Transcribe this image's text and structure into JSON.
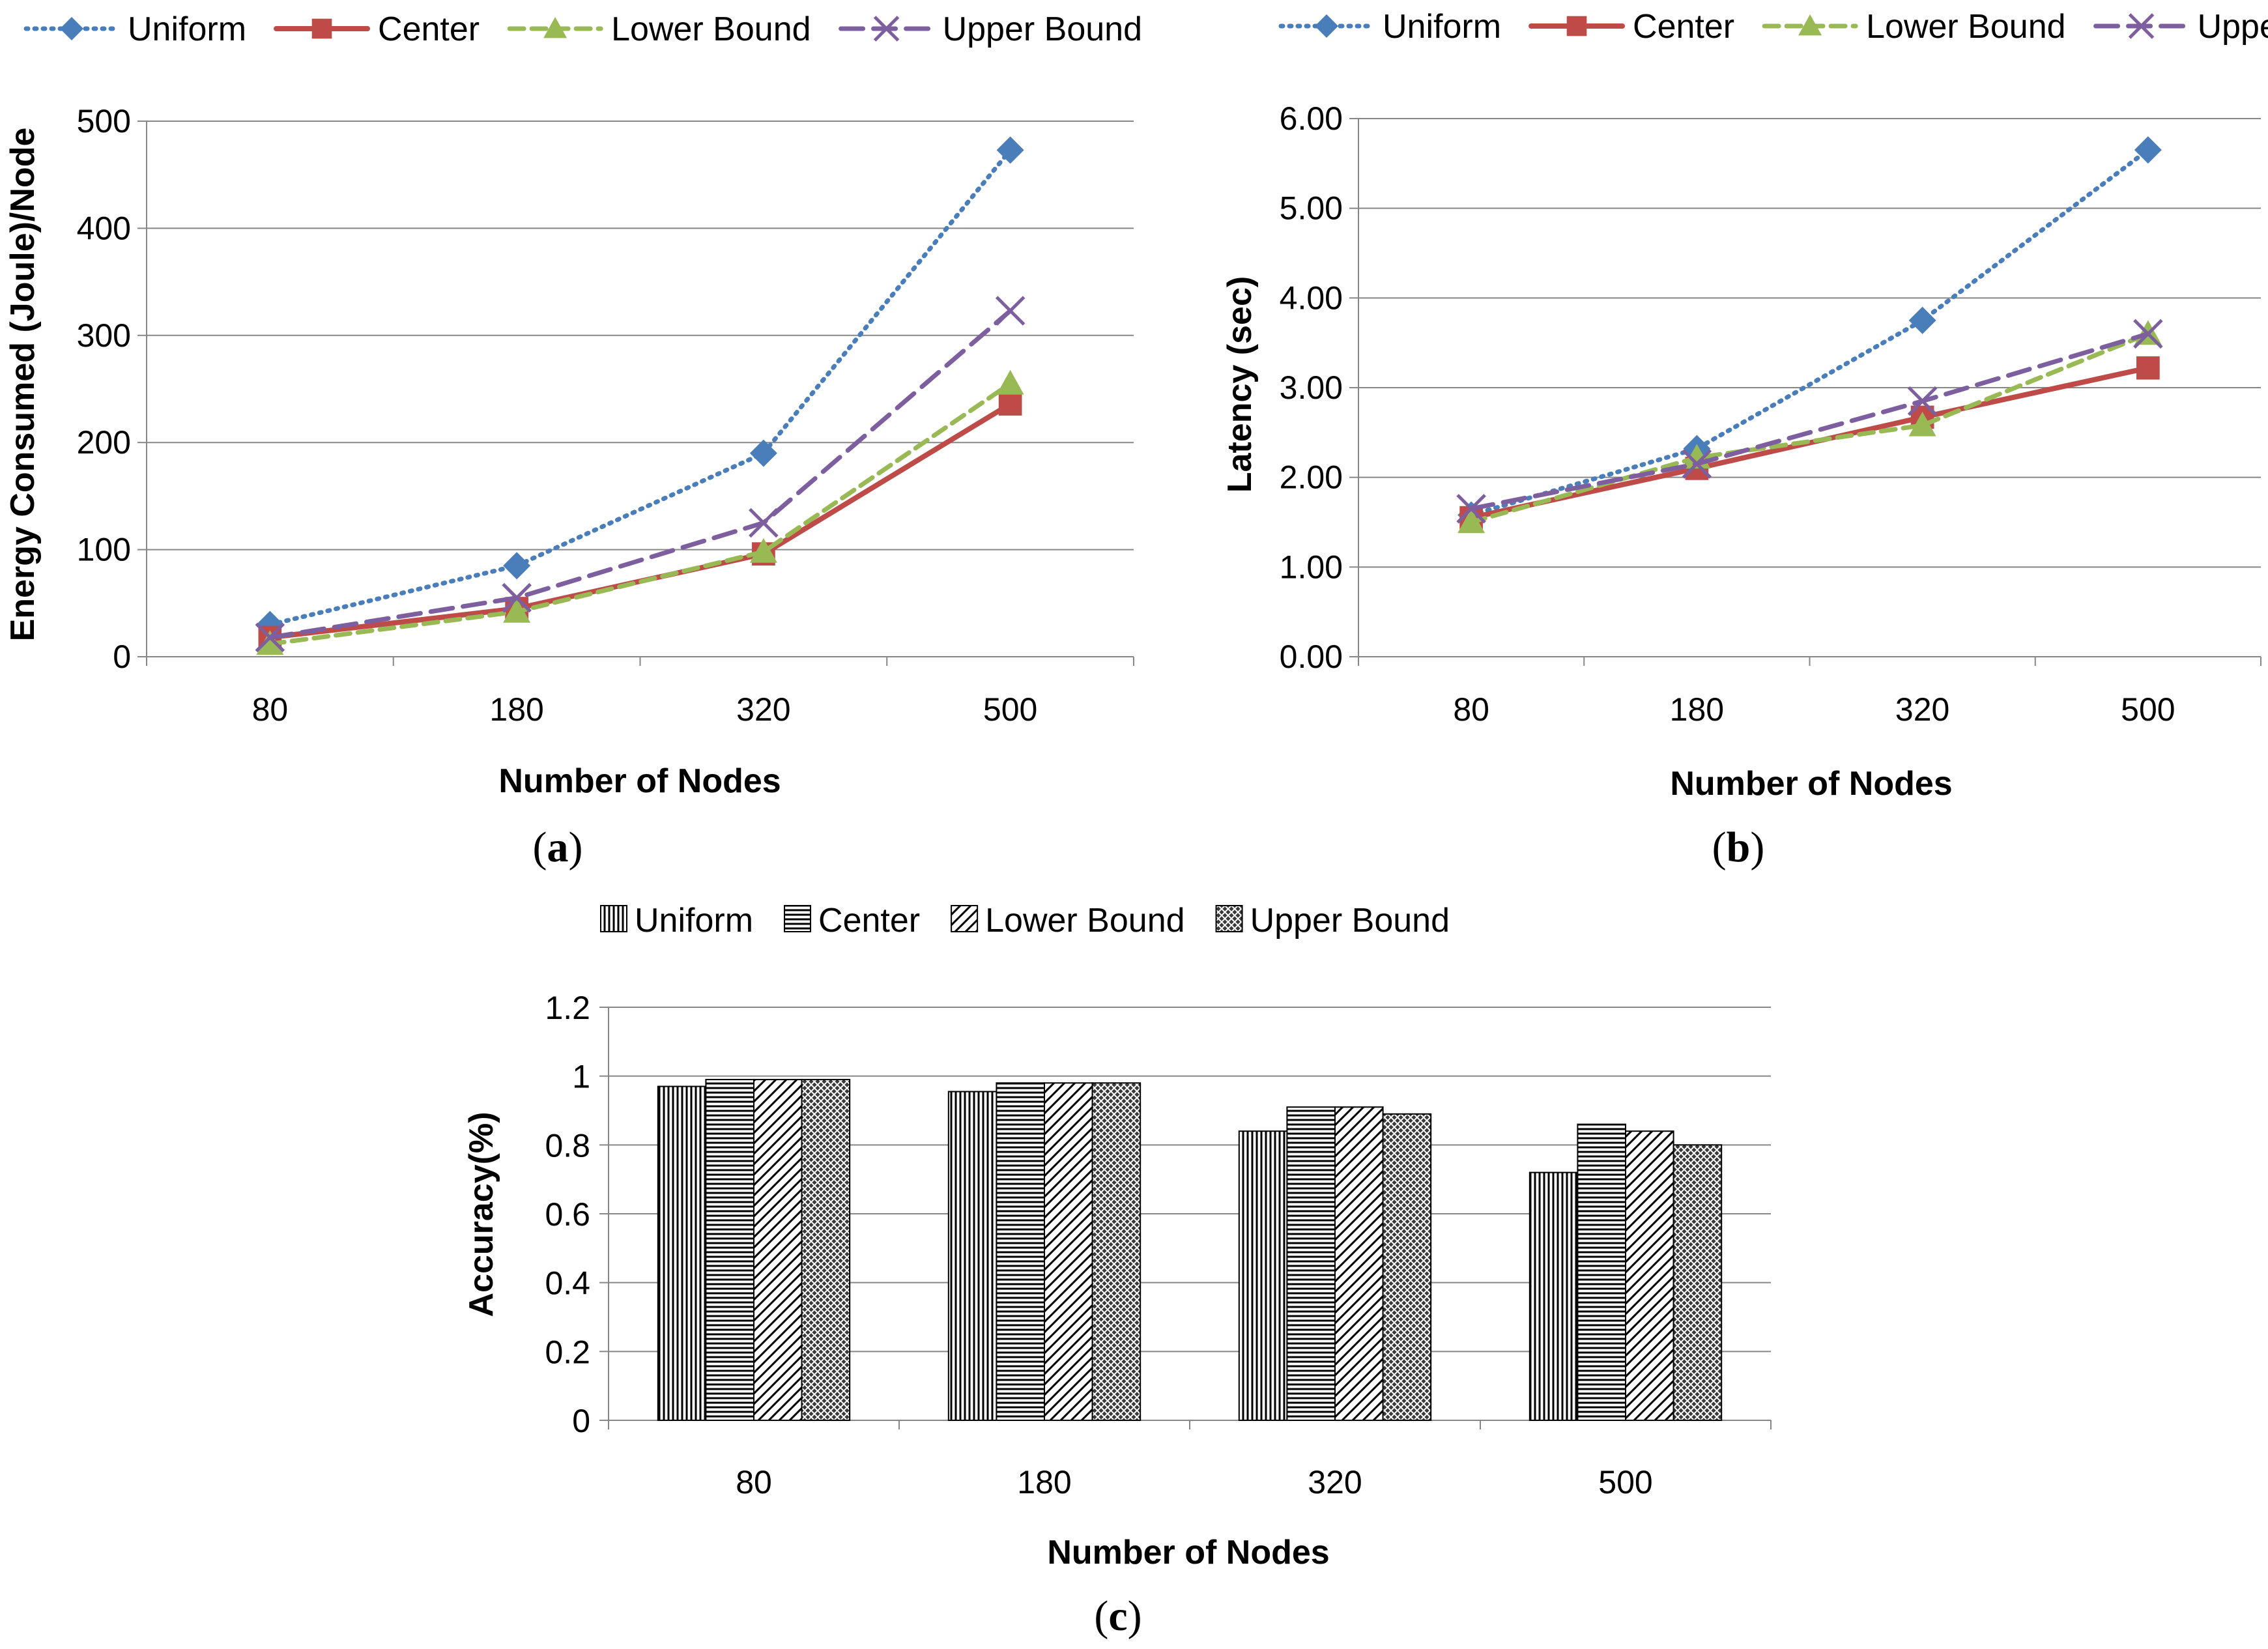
{
  "chart_data": [
    {
      "type": "line",
      "panel_label": "a",
      "categories": [
        "80",
        "180",
        "320",
        "500"
      ],
      "xlabel": "Number of Nodes",
      "ylabel": "Energy Consumed (Joule)/Node",
      "ylim": [
        0,
        500
      ],
      "yticks": [
        "0",
        "100",
        "200",
        "300",
        "400",
        "500"
      ],
      "grid": "horizontal",
      "legend_position": "top",
      "series": [
        {
          "name": "Uniform",
          "values": [
            30,
            85,
            190,
            473
          ],
          "color": "#4a7ebb",
          "dash": "dotted",
          "marker": "diamond"
        },
        {
          "name": "Center",
          "values": [
            18,
            45,
            96,
            236
          ],
          "color": "#be4b48",
          "dash": "solid",
          "marker": "square"
        },
        {
          "name": "Lower Bound",
          "values": [
            12,
            42,
            98,
            255
          ],
          "color": "#98b954",
          "dash": "dashed",
          "marker": "triangle"
        },
        {
          "name": "Upper Bound",
          "values": [
            18,
            55,
            125,
            323
          ],
          "color": "#7d5fa0",
          "dash": "longdash",
          "marker": "x"
        }
      ]
    },
    {
      "type": "line",
      "panel_label": "b",
      "categories": [
        "80",
        "180",
        "320",
        "500"
      ],
      "xlabel": "Number of Nodes",
      "ylabel": "Latency (sec)",
      "ylim": [
        0,
        6
      ],
      "yticks": [
        "0.00",
        "1.00",
        "2.00",
        "3.00",
        "4.00",
        "5.00",
        "6.00"
      ],
      "grid": "horizontal",
      "legend_position": "top",
      "series": [
        {
          "name": "Uniform",
          "values": [
            1.58,
            2.32,
            3.75,
            5.65
          ],
          "color": "#4a7ebb",
          "dash": "dotted",
          "marker": "diamond"
        },
        {
          "name": "Center",
          "values": [
            1.55,
            2.1,
            2.67,
            3.22
          ],
          "color": "#be4b48",
          "dash": "solid",
          "marker": "square"
        },
        {
          "name": "Lower Bound",
          "values": [
            1.5,
            2.22,
            2.58,
            3.6
          ],
          "color": "#98b954",
          "dash": "dashed",
          "marker": "triangle"
        },
        {
          "name": "Upper Bound",
          "values": [
            1.65,
            2.15,
            2.85,
            3.6
          ],
          "color": "#7d5fa0",
          "dash": "longdash",
          "marker": "x"
        }
      ]
    },
    {
      "type": "bar",
      "panel_label": "c",
      "categories": [
        "80",
        "180",
        "320",
        "500"
      ],
      "xlabel": "Number of Nodes",
      "ylabel": "Accuracy(%)",
      "ylim": [
        0,
        1.2
      ],
      "yticks": [
        "0",
        "0.2",
        "0.4",
        "0.6",
        "0.8",
        "1",
        "1.2"
      ],
      "grid": "horizontal",
      "legend_position": "top",
      "series": [
        {
          "name": "Uniform",
          "values": [
            0.97,
            0.955,
            0.84,
            0.72
          ],
          "pattern": "vertical-lines"
        },
        {
          "name": "Center",
          "values": [
            0.99,
            0.98,
            0.91,
            0.86
          ],
          "pattern": "horizontal-lines"
        },
        {
          "name": "Lower Bound",
          "values": [
            0.99,
            0.98,
            0.91,
            0.84
          ],
          "pattern": "diagonal-lines"
        },
        {
          "name": "Upper Bound",
          "values": [
            0.99,
            0.98,
            0.89,
            0.8
          ],
          "pattern": "crosshatch-dense"
        }
      ]
    }
  ]
}
